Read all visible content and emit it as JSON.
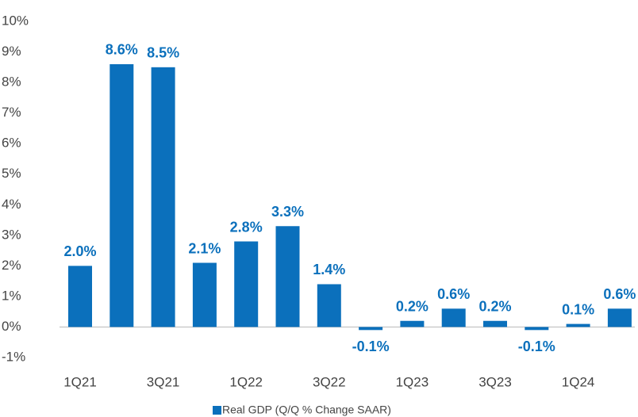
{
  "chart_data": {
    "type": "bar",
    "categories": [
      "1Q21",
      null,
      "3Q21",
      null,
      "1Q22",
      null,
      "3Q22",
      null,
      "1Q23",
      null,
      "3Q23",
      null,
      "1Q24",
      null
    ],
    "series": [
      {
        "name": "Real GDP (Q/Q % Change SAAR)",
        "color": "#0b70bc",
        "values": [
          2.0,
          8.6,
          8.5,
          2.1,
          2.8,
          3.3,
          1.4,
          -0.1,
          0.2,
          0.6,
          0.2,
          -0.1,
          0.1,
          0.6
        ],
        "value_labels": [
          "2.0%",
          "8.6%",
          "8.5%",
          "2.1%",
          "2.8%",
          "3.3%",
          "1.4%",
          "-0.1%",
          "0.2%",
          "0.6%",
          "0.2%",
          "-0.1%",
          "0.1%",
          "0.6%"
        ]
      }
    ],
    "ylim": [
      -1,
      10
    ],
    "yticks": [
      {
        "value": -1,
        "label": "-1%"
      },
      {
        "value": 0,
        "label": "0%"
      },
      {
        "value": 1,
        "label": "1%"
      },
      {
        "value": 2,
        "label": "2%"
      },
      {
        "value": 3,
        "label": "3%"
      },
      {
        "value": 4,
        "label": "4%"
      },
      {
        "value": 5,
        "label": "5%"
      },
      {
        "value": 6,
        "label": "6%"
      },
      {
        "value": 7,
        "label": "7%"
      },
      {
        "value": 8,
        "label": "8%"
      },
      {
        "value": 9,
        "label": "9%"
      },
      {
        "value": 10,
        "label": "10%"
      }
    ],
    "grid": false,
    "legend": "bottom"
  }
}
